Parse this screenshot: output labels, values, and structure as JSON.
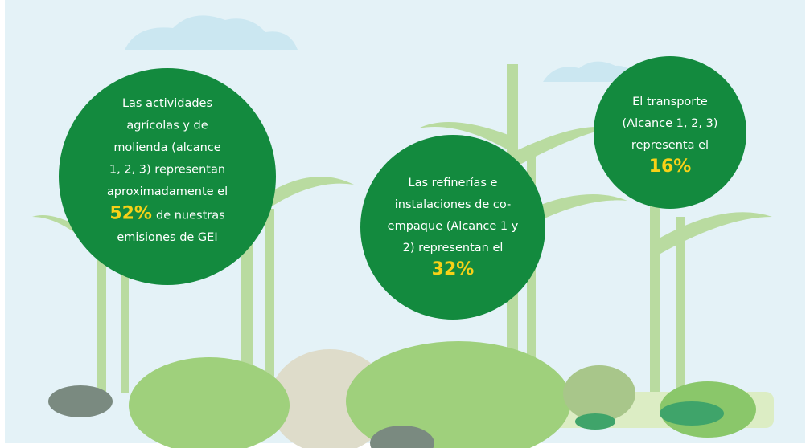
{
  "circles": [
    {
      "text_lines": [
        "Las actividades",
        "agrícolas y de",
        "molienda (alcance",
        "1, 2, 3) representan",
        "aproximadamente el"
      ],
      "highlight": "52%",
      "after_lines": [
        "de nuestras",
        "emisiones de GEI"
      ]
    },
    {
      "text_lines": [
        "Las refinerías e",
        "instalaciones de co-",
        "empaque (Alcance 1 y",
        "2) representan el"
      ],
      "highlight": "32%",
      "after_lines": []
    },
    {
      "text_lines": [
        "El transporte",
        "(Alcance 1, 2, 3)",
        "representa el"
      ],
      "highlight": "16%",
      "after_lines": []
    }
  ]
}
